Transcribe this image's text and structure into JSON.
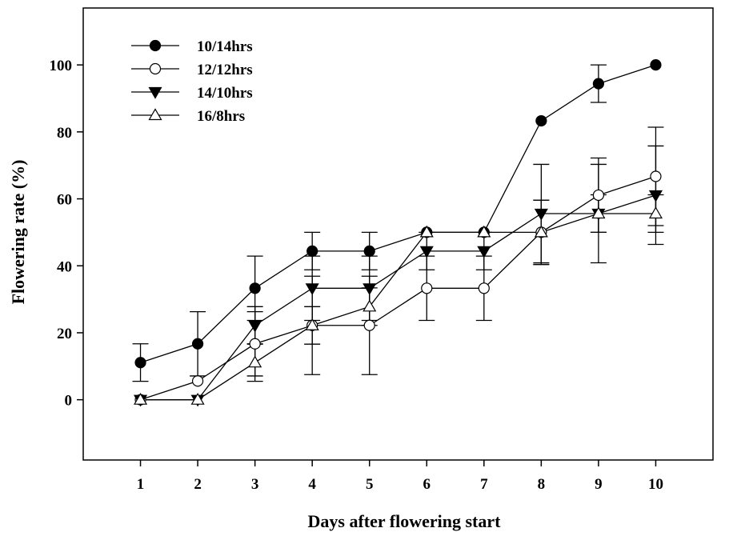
{
  "chart_data": {
    "type": "line",
    "xlabel": "Days after flowering start",
    "ylabel": "Flowering rate (%)",
    "x": [
      1,
      2,
      3,
      4,
      5,
      6,
      7,
      8,
      9,
      10
    ],
    "xlim": [
      0,
      11
    ],
    "ylim": [
      -18,
      117
    ],
    "yticks": [
      0,
      20,
      40,
      60,
      80,
      100
    ],
    "grid": false,
    "legend_position": "top-left",
    "error_bars": true,
    "series": [
      {
        "name": "10/14hrs",
        "marker": "filled-circle",
        "color": "#000000",
        "values": [
          11.1,
          16.7,
          33.3,
          44.4,
          44.4,
          50.0,
          50.0,
          83.3,
          94.4,
          100.0
        ],
        "error": [
          5.6,
          9.6,
          9.6,
          5.6,
          5.6,
          0,
          0,
          0,
          5.6,
          0
        ]
      },
      {
        "name": "12/12hrs",
        "marker": "open-circle",
        "color": "#000000",
        "values": [
          0.0,
          5.6,
          16.7,
          22.2,
          22.2,
          33.3,
          33.3,
          50.0,
          61.1,
          66.7
        ],
        "error": [
          0,
          0,
          9.6,
          14.7,
          14.7,
          9.6,
          9.6,
          9.6,
          11.1,
          14.7
        ]
      },
      {
        "name": "14/10hrs",
        "marker": "filled-triangle-down",
        "color": "#000000",
        "values": [
          0.0,
          0.0,
          22.2,
          33.3,
          33.3,
          44.4,
          44.4,
          55.6,
          55.6,
          61.1
        ],
        "error": [
          0,
          0,
          5.6,
          9.6,
          9.6,
          5.6,
          5.6,
          14.7,
          14.7,
          14.7
        ]
      },
      {
        "name": "16/8hrs",
        "marker": "open-triangle-up",
        "color": "#000000",
        "values": [
          0.0,
          0.0,
          11.1,
          22.2,
          27.8,
          50.0,
          50.0,
          50.0,
          55.6,
          55.6
        ],
        "error": [
          0,
          0,
          5.6,
          5.6,
          5.6,
          0,
          0,
          9.6,
          5.6,
          5.6
        ]
      }
    ]
  }
}
